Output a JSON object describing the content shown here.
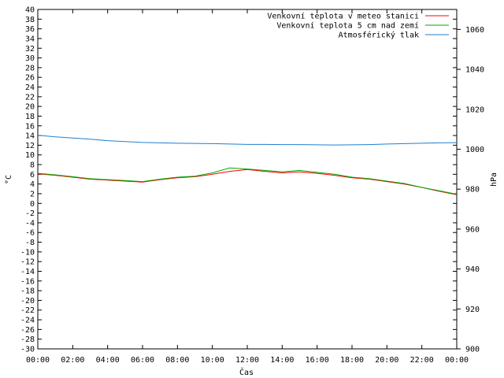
{
  "chart_data": {
    "type": "line",
    "xlabel": "Čas",
    "ylabel": "°C",
    "y2label": "hPa",
    "grid": false,
    "legend_position": "top-right",
    "x_ticks": [
      "00:00",
      "02:00",
      "04:00",
      "06:00",
      "08:00",
      "10:00",
      "12:00",
      "14:00",
      "16:00",
      "18:00",
      "20:00",
      "22:00",
      "00:00"
    ],
    "ylim": [
      -30,
      40
    ],
    "y_tick_step": 2,
    "y2lim": [
      900,
      1070
    ],
    "y2_ticks": [
      900,
      920,
      940,
      960,
      980,
      1000,
      1020,
      1040,
      1060
    ],
    "x_hours": [
      0,
      1,
      2,
      3,
      4,
      5,
      6,
      7,
      8,
      9,
      10,
      11,
      12,
      13,
      14,
      15,
      16,
      17,
      18,
      19,
      20,
      21,
      22,
      23,
      24
    ],
    "series": [
      {
        "name": "Venkovní teplota v meteo stanici",
        "axis": "left",
        "color": "#ff0000",
        "values": [
          6.1,
          5.8,
          5.4,
          5.0,
          4.8,
          4.6,
          4.4,
          4.9,
          5.3,
          5.5,
          6.0,
          6.6,
          7.0,
          6.6,
          6.3,
          6.5,
          6.2,
          5.8,
          5.3,
          5.0,
          4.5,
          4.0,
          3.3,
          2.5,
          1.8
        ]
      },
      {
        "name": "Venkovní teplota 5 cm nad zemí",
        "axis": "left",
        "color": "#00aa00",
        "values": [
          6.2,
          5.9,
          5.5,
          5.1,
          4.9,
          4.7,
          4.5,
          5.0,
          5.4,
          5.6,
          6.3,
          7.3,
          7.1,
          6.8,
          6.5,
          6.8,
          6.4,
          6.0,
          5.4,
          5.1,
          4.6,
          4.1,
          3.3,
          2.6,
          1.9
        ]
      },
      {
        "name": "Atmosférický tlak",
        "axis": "right",
        "color": "#1f7fd0",
        "values": [
          1007.0,
          1006.2,
          1005.6,
          1005.0,
          1004.3,
          1003.8,
          1003.4,
          1003.2,
          1003.0,
          1002.9,
          1002.8,
          1002.6,
          1002.4,
          1002.4,
          1002.3,
          1002.3,
          1002.2,
          1002.1,
          1002.2,
          1002.3,
          1002.6,
          1002.8,
          1003.0,
          1003.2,
          1003.3
        ]
      }
    ]
  }
}
